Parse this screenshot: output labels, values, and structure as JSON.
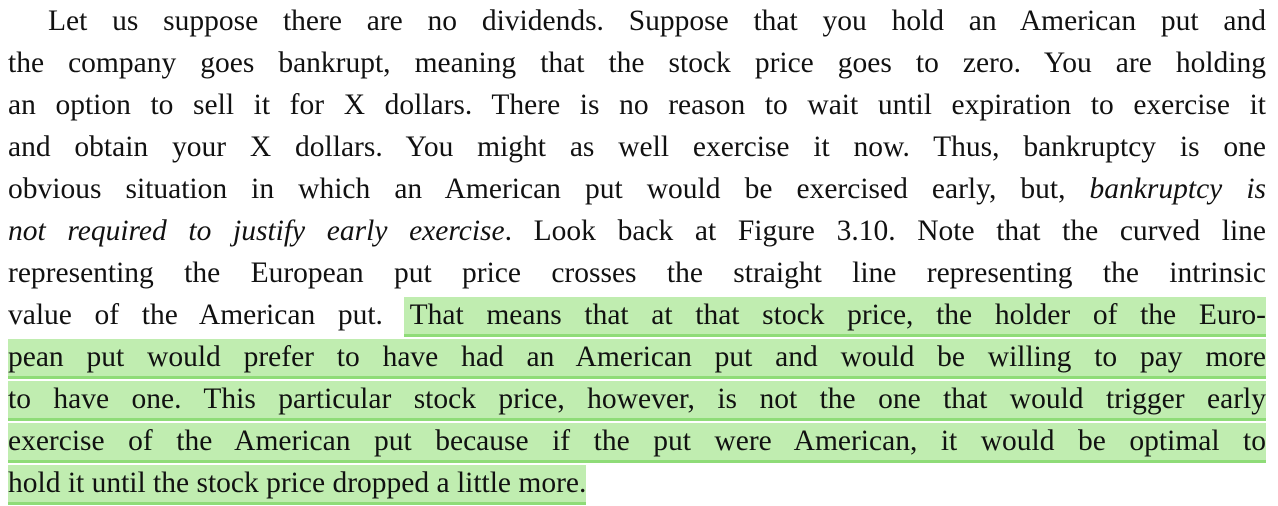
{
  "document": {
    "highlight_color": "#c0edb0",
    "highlight_edge_color": "#8fdc78",
    "lines": [
      {
        "segments": [
          {
            "text": "Let us suppose there are no dividends. Suppose that you hold an American put and"
          }
        ]
      },
      {
        "segments": [
          {
            "text": "the company goes bankrupt, meaning that the stock price goes to zero. You are holding"
          }
        ]
      },
      {
        "segments": [
          {
            "text": "an option to sell it for X dollars. There is no reason to wait until expiration to exercise it"
          }
        ]
      },
      {
        "segments": [
          {
            "text": "and obtain your X dollars. You might as well exercise it now. Thus, bankruptcy is one"
          }
        ]
      },
      {
        "segments": [
          {
            "text": "obvious situation in which an American put would be exercised early, but, "
          },
          {
            "text": "bankruptcy is",
            "italic": true
          }
        ]
      },
      {
        "segments": [
          {
            "text": "not required to justify early exercise",
            "italic": true
          },
          {
            "text": ". Look back at Figure 3.10. Note that the curved line"
          }
        ]
      },
      {
        "segments": [
          {
            "text": "representing the European put price crosses the straight line representing the intrinsic"
          }
        ]
      },
      {
        "segments": [
          {
            "text": "value of the American put. "
          },
          {
            "text": "That means that at that stock price, the holder of the Euro-",
            "highlight": true
          }
        ]
      },
      {
        "segments": [
          {
            "text": "pean put would prefer to have had an American put and would be willing to pay more",
            "highlight": true
          }
        ]
      },
      {
        "segments": [
          {
            "text": "to have one. This particular stock price, however, is not the one that would trigger early",
            "highlight": true
          }
        ]
      },
      {
        "segments": [
          {
            "text": "exercise of the American put because if the put were American, it would be optimal to",
            "highlight": true
          }
        ]
      },
      {
        "segments": [
          {
            "text": "hold it until the stock price dropped a little more.",
            "highlight": true
          }
        ]
      }
    ]
  }
}
